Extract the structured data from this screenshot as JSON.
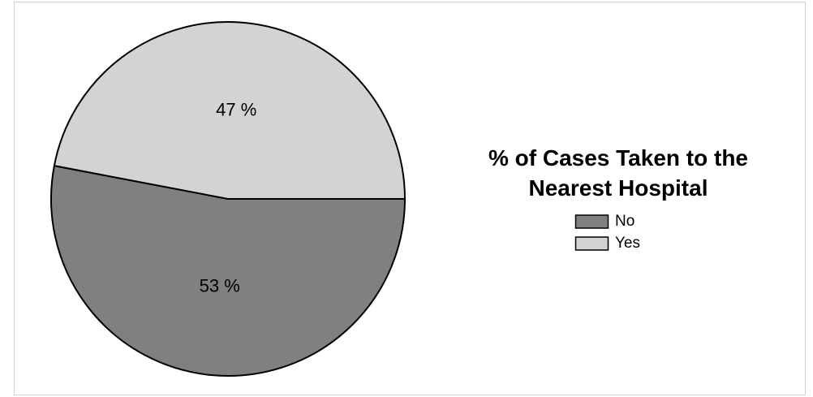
{
  "chart_data": {
    "type": "pie",
    "title": "% of Cases Taken to the Nearest Hospital",
    "categories": [
      "No",
      "Yes"
    ],
    "values": [
      53,
      47
    ],
    "value_labels": [
      "53 %",
      "47 %"
    ],
    "colors": [
      "#808080",
      "#d3d3d3"
    ],
    "legend": "right"
  }
}
